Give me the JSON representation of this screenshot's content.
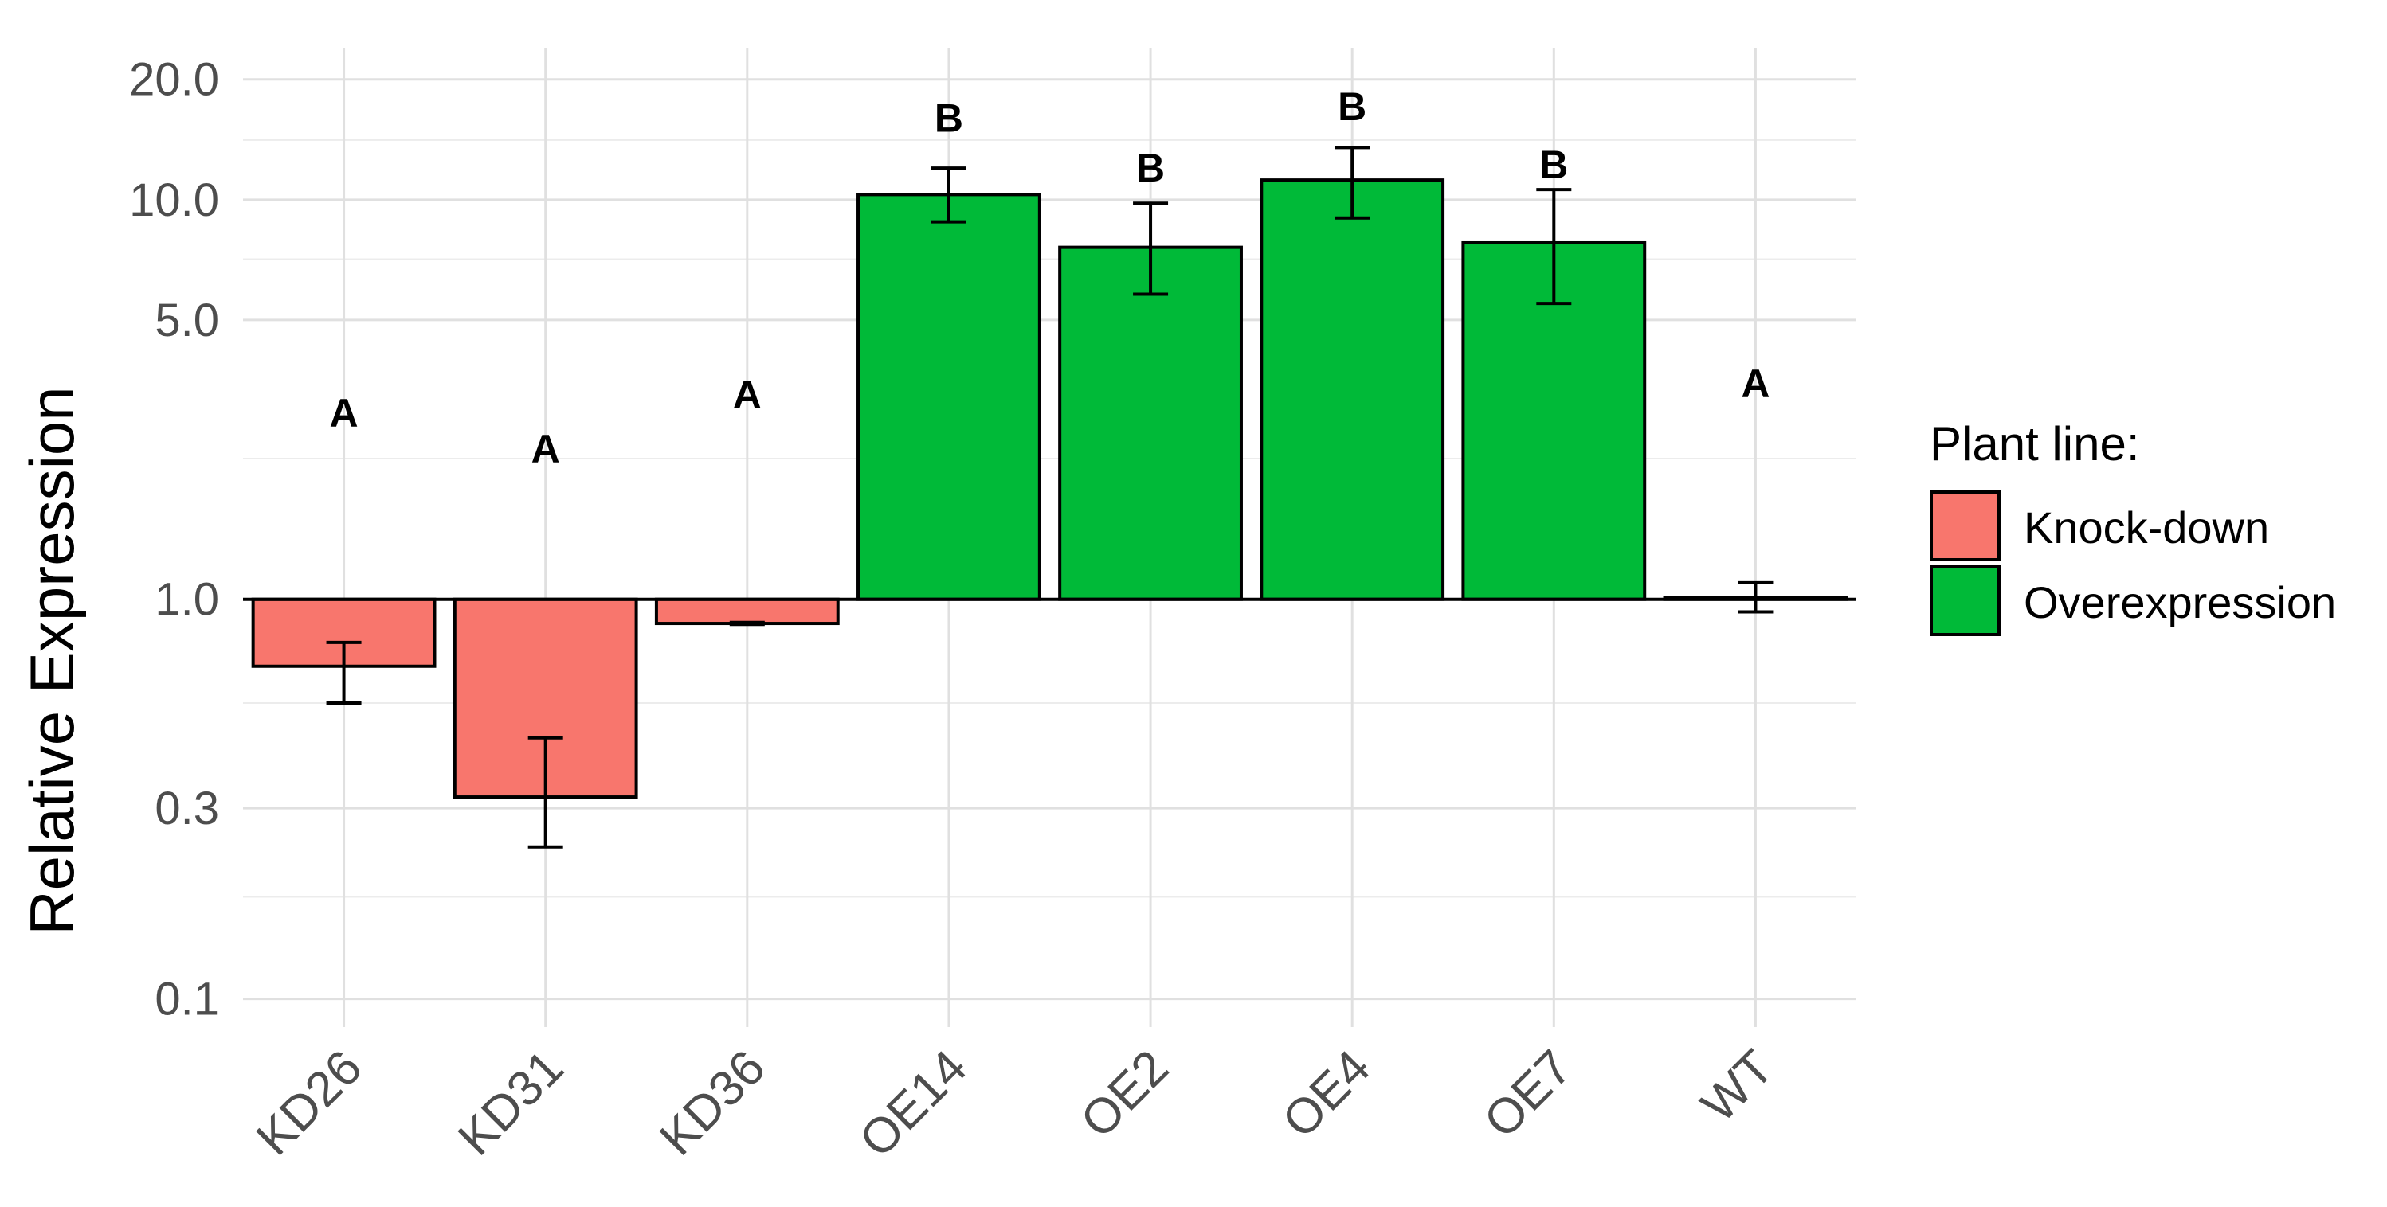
{
  "chart_data": {
    "type": "bar",
    "title": "",
    "xlabel": "",
    "ylabel": "Relative Expression",
    "y_scale": "log10",
    "ylim": [
      0.085,
      24
    ],
    "y_ticks": [
      {
        "value": 0.1,
        "label": "0.1"
      },
      {
        "value": 0.3,
        "label": "0.3"
      },
      {
        "value": 1.0,
        "label": "1.0"
      },
      {
        "value": 5.0,
        "label": "5.0"
      },
      {
        "value": 10.0,
        "label": "10.0"
      },
      {
        "value": 20.0,
        "label": "20.0"
      }
    ],
    "y_minor_gridlines": [
      0.18,
      0.55,
      2.25,
      7.1,
      14.1
    ],
    "grid": true,
    "baseline": 1.0,
    "categories": [
      "KD26",
      "KD31",
      "KD36",
      "OE14",
      "OE2",
      "OE4",
      "OE7",
      "WT"
    ],
    "values": [
      0.68,
      0.32,
      0.87,
      10.3,
      7.6,
      11.2,
      7.8,
      1.01
    ],
    "error_low": [
      0.55,
      0.24,
      0.865,
      8.8,
      5.8,
      9.0,
      5.5,
      0.93
    ],
    "error_high": [
      0.78,
      0.45,
      0.875,
      12.0,
      9.8,
      13.5,
      10.6,
      1.1
    ],
    "groups": [
      "Knock-down",
      "Knock-down",
      "Knock-down",
      "Overexpression",
      "Overexpression",
      "Overexpression",
      "Overexpression",
      "Overexpression"
    ],
    "significance_letters": [
      "A",
      "A",
      "A",
      "B",
      "B",
      "B",
      "B",
      "A"
    ],
    "significance_positions": [
      2.7,
      2.2,
      3.0,
      14.8,
      11.1,
      15.8,
      11.3,
      3.2
    ],
    "legend": {
      "title": "Plant line:",
      "position": "right",
      "entries": [
        {
          "label": "Knock-down",
          "color": "#F8766D"
        },
        {
          "label": "Overexpression",
          "color": "#00BA38"
        }
      ]
    }
  }
}
